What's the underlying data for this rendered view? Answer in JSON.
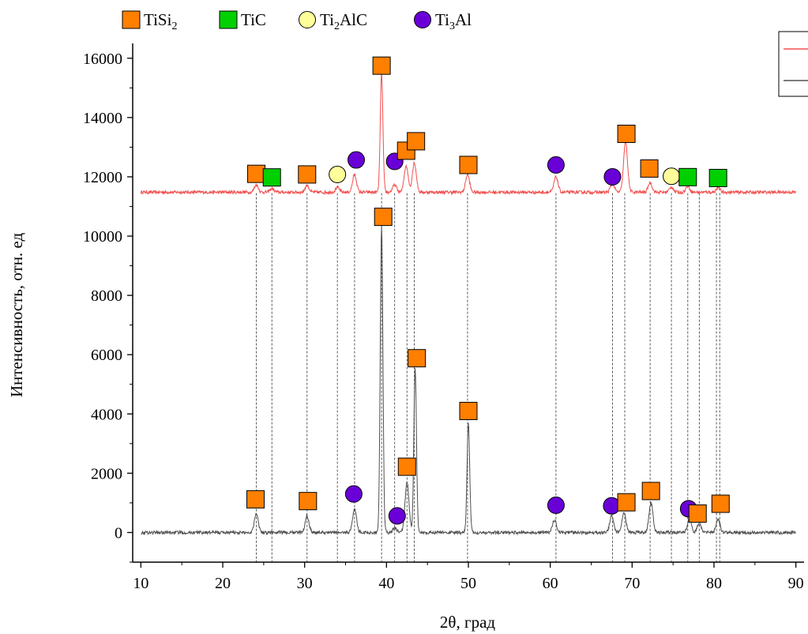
{
  "chart_data": {
    "type": "line",
    "xlabel": "2θ, град",
    "ylabel": "Интенсивность, отн. ед",
    "xlim": [
      9,
      91
    ],
    "ylim": [
      -1000,
      16500
    ],
    "xticks": [
      10,
      20,
      30,
      40,
      50,
      60,
      70,
      80,
      90
    ],
    "yticks": [
      0,
      2000,
      4000,
      6000,
      8000,
      10000,
      12000,
      14000,
      16000
    ],
    "legend_position": "top",
    "phases": [
      {
        "name": "TiSi",
        "sub": "2",
        "tail": "",
        "marker": "square",
        "color": "#ff7f00"
      },
      {
        "name": "TiC",
        "sub": "",
        "tail": "",
        "marker": "square",
        "color": "#00d000"
      },
      {
        "name": "Ti",
        "sub": "2",
        "tail": "AlC",
        "marker": "circle",
        "color": "#ffff9a"
      },
      {
        "name": "Ti",
        "sub": "3",
        "tail": "Al",
        "marker": "circle",
        "color": "#6a00d8"
      }
    ],
    "series": [
      {
        "color": "#f05050",
        "baseline": 11480,
        "peaks": [
          [
            24.1,
            250
          ],
          [
            26.0,
            120
          ],
          [
            30.3,
            230
          ],
          [
            34.0,
            160
          ],
          [
            36.1,
            600
          ],
          [
            39.4,
            4000
          ],
          [
            41.0,
            250
          ],
          [
            42.4,
            900
          ],
          [
            43.4,
            1000
          ],
          [
            49.9,
            600
          ],
          [
            60.7,
            520
          ],
          [
            67.6,
            300
          ],
          [
            69.2,
            1700
          ],
          [
            72.2,
            330
          ],
          [
            74.8,
            180
          ],
          [
            76.8,
            200
          ],
          [
            80.5,
            150
          ]
        ]
      },
      {
        "color": "#505050",
        "baseline": 0,
        "peaks": [
          [
            24.1,
            650
          ],
          [
            30.3,
            560
          ],
          [
            36.1,
            800
          ],
          [
            39.4,
            10300
          ],
          [
            41.0,
            150
          ],
          [
            42.5,
            1700
          ],
          [
            43.5,
            5500
          ],
          [
            50.0,
            3700
          ],
          [
            60.5,
            400
          ],
          [
            67.5,
            550
          ],
          [
            69.0,
            700
          ],
          [
            72.3,
            1000
          ],
          [
            77.0,
            450
          ],
          [
            78.2,
            300
          ],
          [
            80.5,
            450
          ]
        ]
      }
    ],
    "markers_top": [
      {
        "x": 24.1,
        "y": 12100,
        "phase": 0
      },
      {
        "x": 26.0,
        "y": 11980,
        "phase": 1
      },
      {
        "x": 30.3,
        "y": 12080,
        "phase": 0
      },
      {
        "x": 34.0,
        "y": 12080,
        "phase": 2
      },
      {
        "x": 36.3,
        "y": 12570,
        "phase": 3
      },
      {
        "x": 39.4,
        "y": 15750,
        "phase": 0
      },
      {
        "x": 41.0,
        "y": 12520,
        "phase": 3
      },
      {
        "x": 42.4,
        "y": 12880,
        "phase": 0
      },
      {
        "x": 43.6,
        "y": 13200,
        "phase": 0
      },
      {
        "x": 50.0,
        "y": 12400,
        "phase": 0
      },
      {
        "x": 60.7,
        "y": 12400,
        "phase": 3
      },
      {
        "x": 67.6,
        "y": 12000,
        "phase": 3
      },
      {
        "x": 69.3,
        "y": 13450,
        "phase": 0
      },
      {
        "x": 72.1,
        "y": 12280,
        "phase": 0
      },
      {
        "x": 74.8,
        "y": 12020,
        "phase": 2
      },
      {
        "x": 76.8,
        "y": 11990,
        "phase": 1
      },
      {
        "x": 80.5,
        "y": 11960,
        "phase": 1
      }
    ],
    "markers_bottom": [
      {
        "x": 24.0,
        "y": 1120,
        "phase": 0
      },
      {
        "x": 30.4,
        "y": 1060,
        "phase": 0
      },
      {
        "x": 36.0,
        "y": 1300,
        "phase": 3
      },
      {
        "x": 39.6,
        "y": 10650,
        "phase": 0
      },
      {
        "x": 41.3,
        "y": 560,
        "phase": 3
      },
      {
        "x": 42.5,
        "y": 2220,
        "phase": 0
      },
      {
        "x": 43.7,
        "y": 5880,
        "phase": 0
      },
      {
        "x": 50.0,
        "y": 4100,
        "phase": 0
      },
      {
        "x": 60.7,
        "y": 920,
        "phase": 3
      },
      {
        "x": 67.5,
        "y": 900,
        "phase": 3
      },
      {
        "x": 69.3,
        "y": 1020,
        "phase": 0
      },
      {
        "x": 72.3,
        "y": 1400,
        "phase": 0
      },
      {
        "x": 76.9,
        "y": 800,
        "phase": 3
      },
      {
        "x": 78.0,
        "y": 640,
        "phase": 0
      },
      {
        "x": 80.8,
        "y": 970,
        "phase": 0
      }
    ],
    "reference_lines_x": [
      24.1,
      26.0,
      30.3,
      34.0,
      36.1,
      39.4,
      41.0,
      42.5,
      43.4,
      49.9,
      60.7,
      67.6,
      69.1,
      72.2,
      74.8,
      76.8,
      78.2,
      80.3,
      80.7
    ],
    "inset_legend_entries": [
      {
        "color": "#f05050"
      },
      {
        "color": "#505050"
      }
    ]
  }
}
